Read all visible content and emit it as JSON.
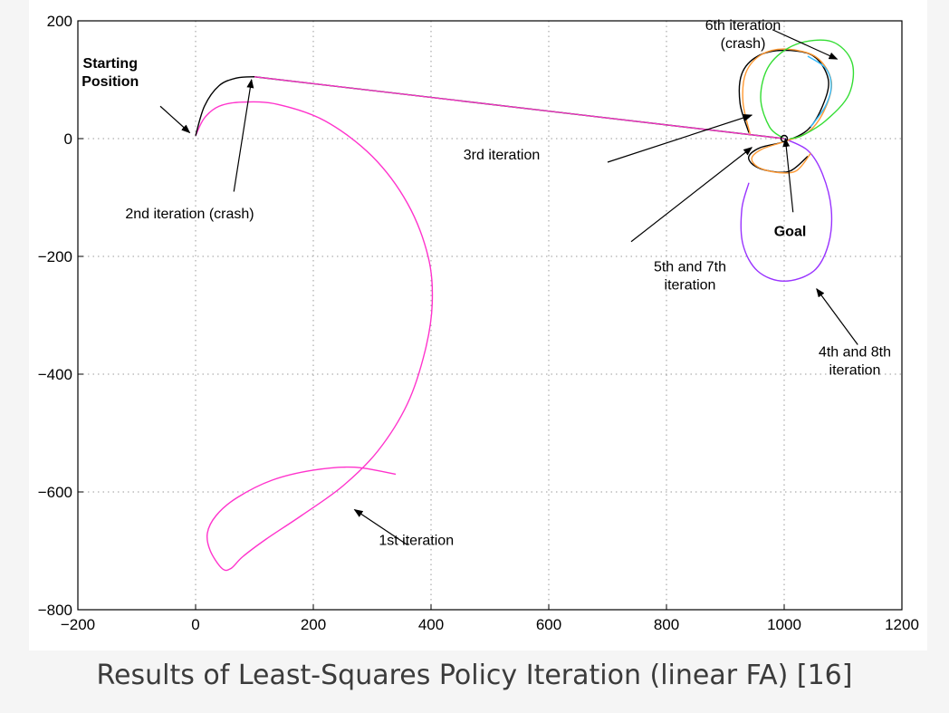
{
  "caption": "Results of Least-Squares Policy Iteration (linear FA) [16]",
  "colors": {
    "magenta": "#ff33cc",
    "purple": "#9933ff",
    "black": "#000000",
    "orange": "#ff9933",
    "green": "#33dd33",
    "cyan": "#33bbff",
    "grid": "#9a9a9a",
    "background": "#f5f5f5"
  },
  "chart_data": {
    "type": "line",
    "title": "",
    "xlabel": "",
    "ylabel": "",
    "xlim": [
      -200,
      1200
    ],
    "ylim": [
      -800,
      200
    ],
    "xticks": [
      -200,
      0,
      200,
      400,
      600,
      800,
      1000,
      1200
    ],
    "yticks": [
      200,
      0,
      -200,
      -400,
      -600,
      -800
    ],
    "grid": true,
    "series": [
      {
        "name": "1st iteration",
        "color": "#ff33cc",
        "x": [
          0,
          15,
          40,
          80,
          140,
          220,
          300,
          360,
          395,
          402,
          390,
          360,
          310,
          250,
          180,
          120,
          80,
          60,
          45,
          25,
          20,
          35,
          70,
          130,
          200,
          270,
          340
        ],
        "y": [
          5,
          35,
          55,
          62,
          58,
          30,
          -30,
          -110,
          -200,
          -280,
          -360,
          -450,
          -530,
          -590,
          -640,
          -680,
          -710,
          -730,
          -730,
          -700,
          -670,
          -640,
          -610,
          -580,
          -563,
          -558,
          -570
        ]
      },
      {
        "name": "2nd iteration (crash)",
        "color": "#000000",
        "x": [
          0,
          15,
          40,
          70,
          100,
          1000
        ],
        "y": [
          5,
          55,
          90,
          103,
          105,
          0
        ]
      },
      {
        "name": "4th and 8th iteration",
        "color": "#9933ff",
        "x": [
          1000,
          1040,
          1065,
          1080,
          1075,
          1050,
          1000,
          955,
          930,
          928,
          940
        ],
        "y": [
          0,
          -20,
          -60,
          -120,
          -180,
          -225,
          -242,
          -225,
          -180,
          -120,
          -75
        ]
      },
      {
        "name": "3rd iteration",
        "color": "#000000",
        "x": [
          940,
          925,
          928,
          955,
          1000,
          1050,
          1075,
          1065,
          1040,
          1000,
          960,
          940,
          948,
          975,
          1010,
          1040
        ],
        "y": [
          10,
          60,
          110,
          140,
          150,
          140,
          100,
          55,
          15,
          -5,
          -15,
          -30,
          -45,
          -55,
          -55,
          -30
        ]
      },
      {
        "name": "5th and 7th iteration",
        "color": "#ff9933",
        "x": [
          942,
          930,
          935,
          962,
          1005,
          1055,
          1080,
          1070,
          1042,
          1000,
          962,
          945,
          955,
          985,
          1020,
          1045
        ],
        "y": [
          8,
          62,
          112,
          143,
          152,
          138,
          98,
          52,
          12,
          -5,
          -18,
          -33,
          -48,
          -57,
          -55,
          -25
        ]
      },
      {
        "name": "6th iteration (crash)",
        "color": "#33dd33",
        "x": [
          1000,
          975,
          960,
          975,
          1020,
          1080,
          1115,
          1110,
          1070,
          1030,
          1010
        ],
        "y": [
          0,
          20,
          70,
          125,
          160,
          165,
          130,
          75,
          30,
          5,
          0
        ]
      },
      {
        "name": "cyan trace",
        "color": "#33bbff",
        "x": [
          1040,
          1070,
          1080,
          1070,
          1045
        ],
        "y": [
          140,
          120,
          90,
          55,
          20
        ]
      }
    ],
    "annotations": [
      {
        "name": "starting-position",
        "lines": [
          "Starting",
          "Position"
        ],
        "bold": true,
        "text_x": -145,
        "text_y": 120,
        "arrow_from": [
          -60,
          55
        ],
        "arrow_to": [
          -10,
          10
        ]
      },
      {
        "name": "2nd-iteration",
        "lines": [
          "2nd iteration (crash)"
        ],
        "bold": false,
        "text_x": -10,
        "text_y": -135,
        "arrow_from": [
          65,
          -90
        ],
        "arrow_to": [
          95,
          100
        ]
      },
      {
        "name": "3rd-iteration",
        "lines": [
          "3rd  iteration"
        ],
        "bold": false,
        "text_x": 520,
        "text_y": -35,
        "arrow_from": [
          700,
          -40
        ],
        "arrow_to": [
          945,
          40
        ]
      },
      {
        "name": "6th-iteration",
        "lines": [
          "6th iteration",
          "(crash)"
        ],
        "bold": false,
        "text_x": 930,
        "text_y": 185,
        "arrow_from": [
          980,
          185
        ],
        "arrow_to": [
          1090,
          135
        ]
      },
      {
        "name": "goal",
        "lines": [
          "Goal"
        ],
        "bold": true,
        "text_x": 1010,
        "text_y": -165,
        "arrow_from": [
          1015,
          -125
        ],
        "arrow_to": [
          1002,
          0
        ]
      },
      {
        "name": "5th-7th-iteration",
        "lines": [
          "5th and 7th",
          "iteration"
        ],
        "bold": false,
        "text_x": 840,
        "text_y": -225,
        "arrow_from": [
          740,
          -175
        ],
        "arrow_to": [
          945,
          -15
        ]
      },
      {
        "name": "4th-8th-iteration",
        "lines": [
          "4th and 8th",
          "iteration"
        ],
        "bold": false,
        "text_x": 1120,
        "text_y": -370,
        "arrow_from": [
          1125,
          -350
        ],
        "arrow_to": [
          1055,
          -255
        ]
      },
      {
        "name": "1st-iteration",
        "lines": [
          "1st iteration"
        ],
        "bold": false,
        "text_x": 375,
        "text_y": -690,
        "arrow_from": [
          360,
          -690
        ],
        "arrow_to": [
          270,
          -630
        ]
      }
    ],
    "goal_point": {
      "x": 1000,
      "y": 0
    }
  }
}
